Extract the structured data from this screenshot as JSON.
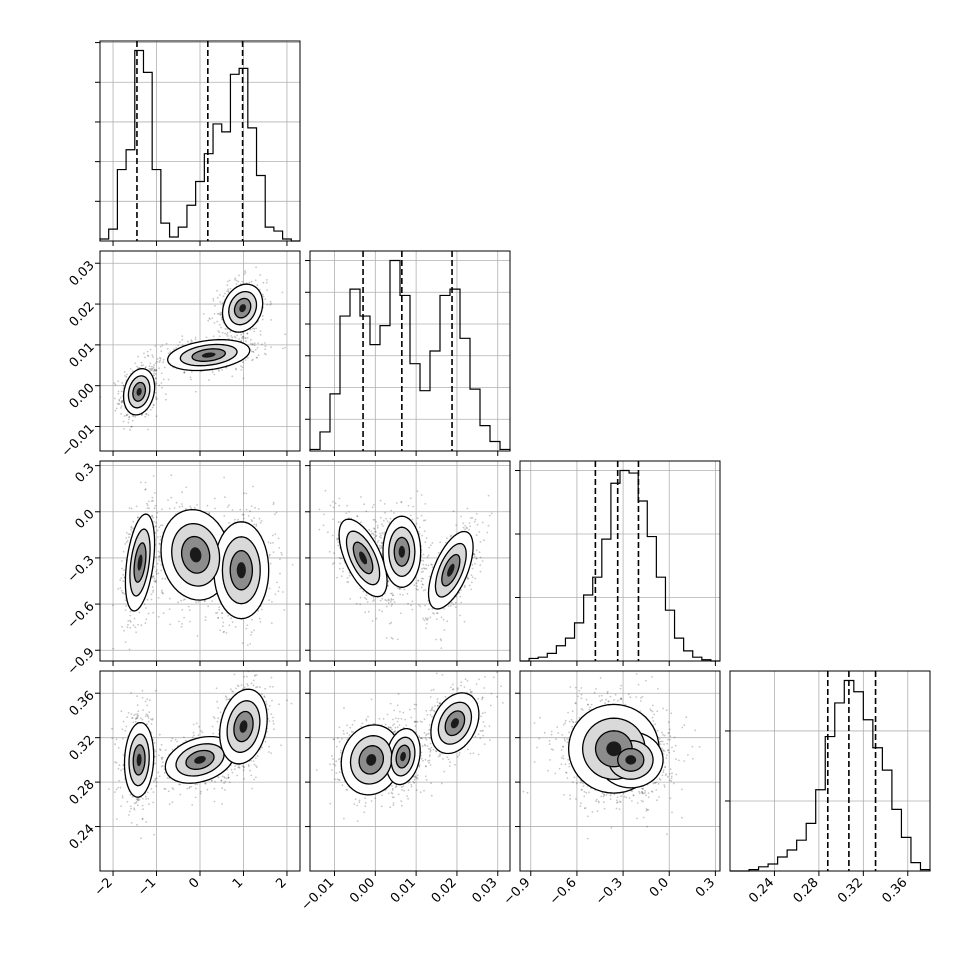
{
  "chart_data": {
    "type": "corner",
    "parameters": [
      {
        "ticks": [
          -2,
          -1,
          0,
          1,
          2
        ],
        "tick_labels": [
          "−2",
          "−1",
          "0",
          "1",
          "2"
        ],
        "range": [
          -2.3,
          2.3
        ],
        "quantiles": [
          -1.45,
          0.18,
          0.98
        ]
      },
      {
        "ticks": [
          -0.01,
          0.0,
          0.01,
          0.02,
          0.03
        ],
        "tick_labels": [
          "−0.01",
          "0.00",
          "0.01",
          "0.02",
          "0.03"
        ],
        "range": [
          -0.016,
          0.033
        ],
        "quantiles": [
          -0.003,
          0.0065,
          0.0188
        ]
      },
      {
        "ticks": [
          -0.9,
          -0.6,
          -0.3,
          0.0,
          0.3
        ],
        "tick_labels": [
          "−0.9",
          "−0.6",
          "−0.3",
          "0.0",
          "0.3"
        ],
        "range": [
          -0.97,
          0.33
        ],
        "quantiles": [
          -0.48,
          -0.335,
          -0.2
        ]
      },
      {
        "ticks": [
          0.24,
          0.28,
          0.32,
          0.36
        ],
        "tick_labels": [
          "0.24",
          "0.28",
          "0.32",
          "0.36"
        ],
        "range": [
          0.2,
          0.38
        ],
        "quantiles": [
          0.288,
          0.307,
          0.331
        ]
      }
    ],
    "histograms": [
      {
        "param": 0,
        "bin_edges_range": [
          -2.3,
          2.3
        ],
        "counts": [
          1,
          6,
          36,
          46,
          96,
          85,
          36,
          9,
          2,
          7,
          18,
          30,
          44,
          59,
          55,
          84,
          87,
          57,
          33,
          7,
          5,
          1,
          0
        ]
      },
      {
        "param": 1,
        "bin_edges_range": [
          -0.016,
          0.033
        ],
        "counts": [
          1,
          12,
          36,
          85,
          102,
          85,
          67,
          79,
          120,
          98,
          55,
          38,
          63,
          98,
          102,
          71,
          39,
          16,
          6,
          1
        ]
      },
      {
        "param": 2,
        "bin_edges_range": [
          -0.97,
          0.33
        ],
        "counts": [
          0,
          2,
          3,
          6,
          12,
          18,
          30,
          52,
          66,
          96,
          140,
          150,
          148,
          126,
          98,
          66,
          40,
          18,
          8,
          3,
          1,
          0
        ]
      },
      {
        "param": 3,
        "bin_edges_range": [
          0.2,
          0.38
        ],
        "counts": [
          0,
          0,
          1,
          3,
          5,
          10,
          15,
          22,
          34,
          58,
          96,
          120,
          136,
          128,
          108,
          88,
          72,
          44,
          24,
          6,
          1
        ]
      }
    ],
    "pair_components": {
      "1-0": [
        {
          "mx": -1.4,
          "my": -0.0015,
          "sx": 0.17,
          "sy": 0.0027,
          "rho": 0.2,
          "w": 0.33
        },
        {
          "mx": 0.2,
          "my": 0.0075,
          "sx": 0.45,
          "sy": 0.0018,
          "rho": 0.3,
          "w": 0.34
        },
        {
          "mx": 0.98,
          "my": 0.019,
          "sx": 0.22,
          "sy": 0.0028,
          "rho": 0.2,
          "w": 0.33
        }
      ],
      "2-0": [
        {
          "mx": -1.38,
          "my": -0.33,
          "sx": 0.16,
          "sy": 0.15,
          "rho": 0.4,
          "w": 0.33
        },
        {
          "mx": -0.1,
          "my": -0.28,
          "sx": 0.38,
          "sy": 0.14,
          "rho": -0.1,
          "w": 0.34
        },
        {
          "mx": 0.95,
          "my": -0.38,
          "sx": 0.3,
          "sy": 0.15,
          "rho": 0.0,
          "w": 0.33
        }
      ],
      "3-0": [
        {
          "mx": -1.4,
          "my": 0.3,
          "sx": 0.16,
          "sy": 0.016,
          "rho": 0.1,
          "w": 0.33
        },
        {
          "mx": 0.0,
          "my": 0.3,
          "sx": 0.38,
          "sy": 0.01,
          "rho": 0.3,
          "w": 0.34
        },
        {
          "mx": 1.0,
          "my": 0.33,
          "sx": 0.26,
          "sy": 0.016,
          "rho": 0.2,
          "w": 0.33
        }
      ],
      "2-1": [
        {
          "mx": -0.003,
          "my": -0.3,
          "sx": 0.0028,
          "sy": 0.12,
          "rho": -0.6,
          "w": 0.33
        },
        {
          "mx": 0.0065,
          "my": -0.26,
          "sx": 0.0022,
          "sy": 0.11,
          "rho": 0.0,
          "w": 0.34
        },
        {
          "mx": 0.0185,
          "my": -0.38,
          "sx": 0.0026,
          "sy": 0.12,
          "rho": 0.6,
          "w": 0.33
        }
      ],
      "3-1": [
        {
          "mx": -0.001,
          "my": 0.3,
          "sx": 0.0035,
          "sy": 0.015,
          "rho": 0.1,
          "w": 0.34
        },
        {
          "mx": 0.0068,
          "my": 0.303,
          "sx": 0.002,
          "sy": 0.012,
          "rho": 0.2,
          "w": 0.33
        },
        {
          "mx": 0.0195,
          "my": 0.333,
          "sx": 0.0028,
          "sy": 0.013,
          "rho": 0.3,
          "w": 0.33
        }
      ],
      "3-2": [
        {
          "mx": -0.36,
          "my": 0.31,
          "sx": 0.14,
          "sy": 0.019,
          "rho": 0.0,
          "w": 0.6
        },
        {
          "mx": -0.25,
          "my": 0.3,
          "sx": 0.1,
          "sy": 0.012,
          "rho": 0.0,
          "w": 0.4
        }
      ]
    },
    "grid": true,
    "quantile_lines": "dashed"
  }
}
